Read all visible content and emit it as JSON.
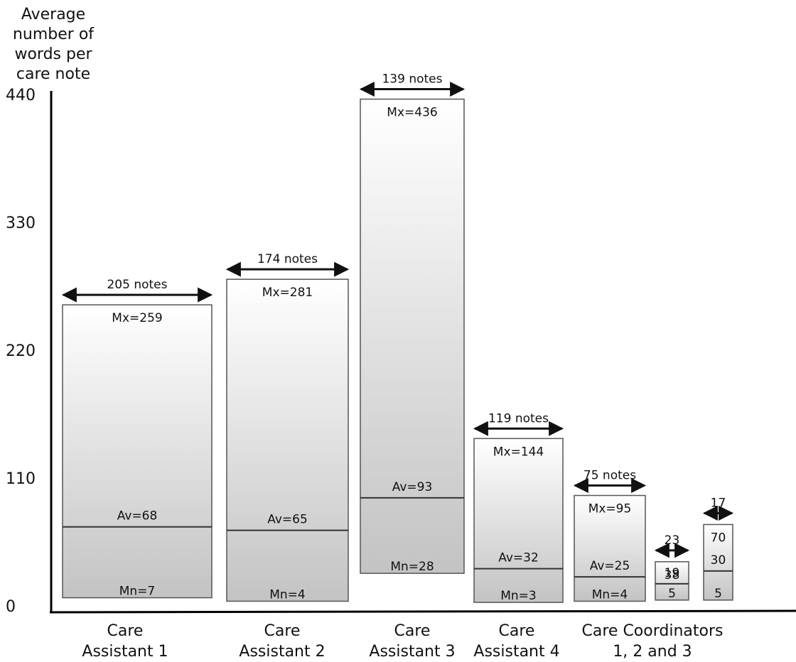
{
  "chart_data": {
    "type": "bar",
    "ylabel": [
      "Average",
      "number of",
      "words per",
      "care note"
    ],
    "ylim": [
      0,
      440
    ],
    "yticks": [
      0,
      110,
      220,
      330,
      440
    ],
    "grid": false,
    "categories": [
      {
        "lines": [
          "Care",
          "Assistant 1"
        ]
      },
      {
        "lines": [
          "Care",
          "Assistant 2"
        ]
      },
      {
        "lines": [
          "Care",
          "Assistant 3"
        ]
      },
      {
        "lines": [
          "Care",
          "Assistant 4"
        ]
      },
      {
        "lines": [
          "Care Coordinators",
          "1, 2 and 3"
        ]
      }
    ],
    "bars": [
      {
        "group": 0,
        "max": 259,
        "avg": 68,
        "min": 7,
        "notes": 205,
        "count_label": "205 notes",
        "max_label": "Mx=259",
        "avg_label": "Av=68",
        "min_label": "Mn=7"
      },
      {
        "group": 1,
        "max": 281,
        "avg": 65,
        "min": 4,
        "notes": 174,
        "count_label": "174 notes",
        "max_label": "Mx=281",
        "avg_label": "Av=65",
        "min_label": "Mn=4"
      },
      {
        "group": 2,
        "max": 436,
        "avg": 93,
        "min": 28,
        "notes": 139,
        "count_label": "139 notes",
        "max_label": "Mx=436",
        "avg_label": "Av=93",
        "min_label": "Mn=28"
      },
      {
        "group": 3,
        "max": 144,
        "avg": 32,
        "min": 3,
        "notes": 119,
        "count_label": "119 notes",
        "max_label": "Mx=144",
        "avg_label": "Av=32",
        "min_label": "Mn=3"
      },
      {
        "group": 4,
        "max": 95,
        "avg": 25,
        "min": 4,
        "notes": 75,
        "count_label": "75 notes",
        "max_label": "Mx=95",
        "avg_label": "Av=25",
        "min_label": "Mn=4"
      },
      {
        "group": 4,
        "max": 38,
        "avg": 19,
        "min": 5,
        "notes": 23,
        "count_label": "23",
        "max_label": "38",
        "avg_label": "19",
        "min_label": "5"
      },
      {
        "group": 4,
        "max": 70,
        "avg": 30,
        "min": 5,
        "notes": 17,
        "count_label": "17",
        "max_label": "70",
        "avg_label": "30",
        "min_label": "5"
      }
    ]
  }
}
